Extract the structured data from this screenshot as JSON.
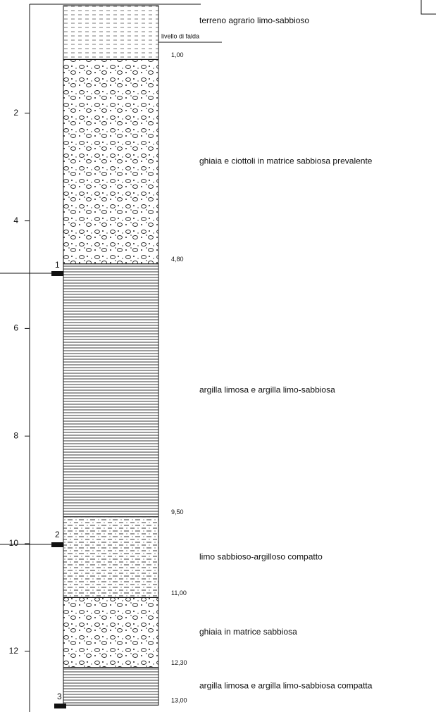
{
  "scale": {
    "ticks": [
      2,
      4,
      6,
      8,
      10,
      12
    ]
  },
  "water_table": "livello di falda",
  "layers": [
    {
      "description": "terreno agrario limo-sabbioso",
      "bottom": {
        "value": 1.0,
        "label": "1,00"
      }
    },
    {
      "description": "ghiaia e ciottoli in matrice sabbiosa prevalente",
      "bottom": {
        "value": 4.8,
        "label": "4,80"
      }
    },
    {
      "description": "argilla limosa e argilla limo-sabbiosa",
      "bottom": {
        "value": 9.5,
        "label": "9,50"
      }
    },
    {
      "description": "limo sabbioso-argilloso compatto",
      "bottom": {
        "value": 11.0,
        "label": "11,00"
      }
    },
    {
      "description": "ghiaia in matrice sabbiosa",
      "bottom": {
        "value": 12.3,
        "label": "12,30"
      }
    },
    {
      "description": "argilla limosa e argilla limo-sabbiosa compatta",
      "bottom": {
        "value": 13.0,
        "label": "13,00"
      }
    }
  ],
  "samples": [
    "1",
    "2",
    "3"
  ]
}
